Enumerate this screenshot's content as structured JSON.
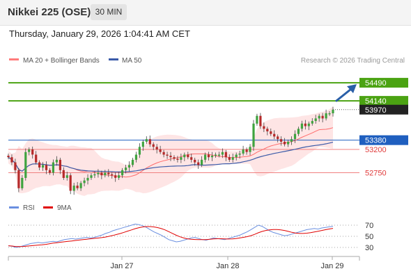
{
  "header": {
    "instrument": "Nikkei 225 (OSE)",
    "timeframe": "30 MIN"
  },
  "datetime": "Thursday, January 29, 2026 1:04:41 AM CET",
  "legend": {
    "ma20": "MA 20 + Bollinger Bands",
    "ma50": "MA 50",
    "credit": "Research © 2026 Trading Central"
  },
  "rsi_legend": {
    "rsi": "RSI",
    "ma9": "9MA"
  },
  "colors": {
    "green": "#4ba312",
    "blue": "#1f5fbf",
    "red": "#e03a3a",
    "dark": "#222222",
    "band": "#fddada",
    "ma20": "#ff6b6b",
    "ma50": "#3a5aa8",
    "arrow": "#2a5fa8"
  },
  "chart_data": [
    {
      "type": "line",
      "x_ticks": [
        "Jan 27",
        "Jan 28",
        "Jan 29"
      ],
      "levels": [
        {
          "value": 54490,
          "label": "54490",
          "kind": "resistance"
        },
        {
          "value": 54140,
          "label": "54140",
          "kind": "resistance"
        },
        {
          "value": 53970,
          "label": "53970",
          "kind": "last"
        },
        {
          "value": 53380,
          "label": "53380",
          "kind": "pivot"
        },
        {
          "value": 53200,
          "label": "53200",
          "kind": "support"
        },
        {
          "value": 52750,
          "label": "52750",
          "kind": "support"
        }
      ],
      "ylim": [
        52300,
        54800
      ],
      "series": [
        {
          "name": "MA 20 + Bollinger Bands"
        },
        {
          "name": "MA 50"
        }
      ],
      "close": [
        53050,
        52950,
        52800,
        52450,
        52650,
        53150,
        53200,
        53100,
        52950,
        52850,
        52900,
        52800,
        52750,
        52950,
        53000,
        52800,
        52650,
        52700,
        52400,
        52500,
        52450,
        52550,
        52600,
        52650,
        52700,
        52720,
        52750,
        52700,
        52750,
        52720,
        52700,
        52650,
        52700,
        52800,
        52850,
        52900,
        53000,
        53100,
        53250,
        53350,
        53400,
        53300,
        53250,
        53200,
        53150,
        53100,
        53080,
        53050,
        53020,
        53000,
        53050,
        53100,
        53050,
        53000,
        52950,
        52900,
        53000,
        53100,
        53050,
        53080,
        53100,
        53100,
        53150,
        53050,
        53000,
        53050,
        53100,
        53120,
        53200,
        53150,
        53250,
        53700,
        53850,
        53650,
        53600,
        53550,
        53500,
        53450,
        53400,
        53350,
        53300,
        53350,
        53400,
        53500,
        53600,
        53700,
        53650,
        53700,
        53750,
        53800,
        53850,
        53800,
        53900,
        53900,
        53970
      ],
      "rsi": {
        "ticks": [
          70,
          50,
          30
        ],
        "ylim": [
          20,
          85
        ],
        "values": [
          33,
          32,
          30,
          31,
          33,
          35,
          37,
          38,
          39,
          38,
          39,
          40,
          41,
          40,
          42,
          44,
          45,
          46,
          45,
          46,
          47,
          48,
          47,
          48,
          50,
          52,
          55,
          57,
          60,
          62,
          64,
          66,
          68,
          70,
          72,
          71,
          69,
          66,
          62,
          58,
          55,
          52,
          48,
          44,
          42,
          40,
          41,
          43,
          45,
          47,
          48,
          46,
          44,
          43,
          45,
          47,
          46,
          45,
          44,
          46,
          48,
          50,
          52,
          55,
          58,
          62,
          66,
          70,
          68,
          64,
          60,
          57,
          55,
          53,
          51,
          52,
          54,
          56,
          58,
          60,
          62,
          63,
          64,
          63,
          65,
          66,
          67,
          68
        ]
      }
    }
  ]
}
